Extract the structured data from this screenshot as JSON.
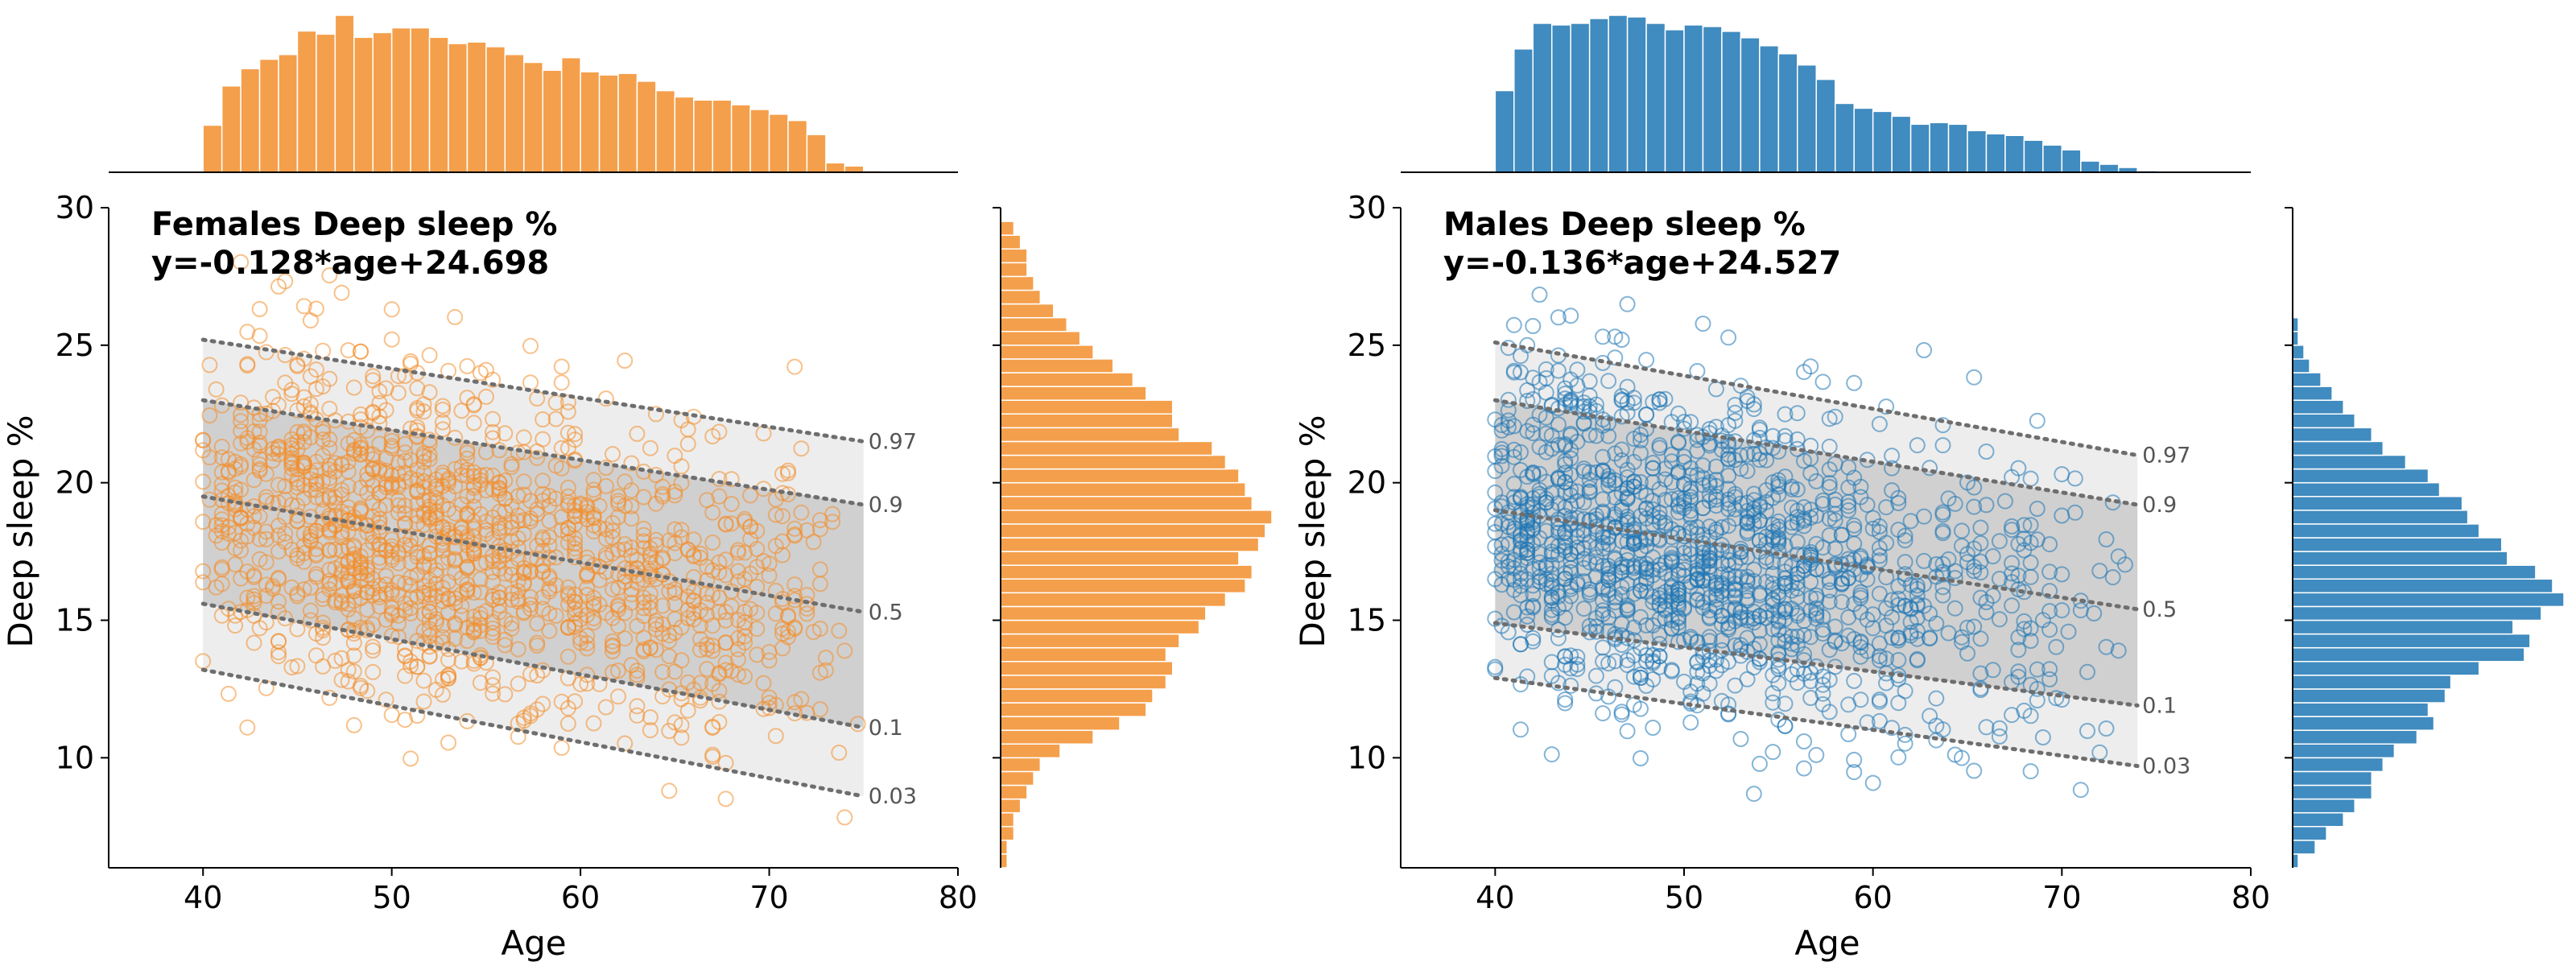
{
  "chart_data": [
    {
      "type": "scatter",
      "title": "Females Deep sleep %",
      "equation": "y=-0.128*age+24.698",
      "xlabel": "Age",
      "ylabel": "Deep sleep %",
      "xlim": [
        35,
        80
      ],
      "ylim": [
        6,
        30
      ],
      "xticks": [
        "40",
        "50",
        "60",
        "70",
        "80"
      ],
      "yticks": [
        "10",
        "15",
        "20",
        "25",
        "30"
      ],
      "color": "#f28e2b",
      "regression": {
        "slope": -0.128,
        "intercept": 24.698
      },
      "quantiles": [
        {
          "label": "0.97",
          "y_at_40": 25.2,
          "y_at_75": 21.5
        },
        {
          "label": "0.9",
          "y_at_40": 23.0,
          "y_at_75": 19.2
        },
        {
          "label": "0.5",
          "y_at_40": 19.5,
          "y_at_75": 15.3
        },
        {
          "label": "0.1",
          "y_at_40": 15.6,
          "y_at_75": 11.1
        },
        {
          "label": "0.03",
          "y_at_40": 13.2,
          "y_at_75": 8.6
        }
      ],
      "age_histogram": {
        "bin_start": 40,
        "bin_width": 1,
        "counts": [
          30,
          55,
          66,
          72,
          75,
          90,
          88,
          100,
          86,
          89,
          92,
          92,
          86,
          82,
          83,
          80,
          75,
          70,
          65,
          73,
          64,
          62,
          63,
          58,
          52,
          48,
          46,
          46,
          43,
          40,
          37,
          33,
          24,
          6,
          4,
          1
        ]
      },
      "value_histogram": {
        "bin_start": 6,
        "bin_width": 0.5,
        "counts": [
          1,
          1,
          2,
          2,
          3,
          4,
          5,
          6,
          9,
          14,
          18,
          22,
          23,
          25,
          26,
          25,
          27,
          30,
          31,
          34,
          37,
          38,
          36,
          39,
          40,
          41,
          38,
          37,
          36,
          34,
          32,
          27,
          26,
          26,
          22,
          20,
          17,
          14,
          12,
          10,
          8,
          6,
          5,
          4,
          4,
          3,
          2
        ]
      },
      "n_points": 1400,
      "seed": 11
    },
    {
      "type": "scatter",
      "title": "Males Deep sleep %",
      "equation": "y=-0.136*age+24.527",
      "xlabel": "Age",
      "ylabel": "Deep sleep %",
      "xlim": [
        35,
        80
      ],
      "ylim": [
        6,
        30
      ],
      "xticks": [
        "40",
        "50",
        "60",
        "70",
        "80"
      ],
      "yticks": [
        "10",
        "15",
        "20",
        "25",
        "30"
      ],
      "color": "#1f77b4",
      "regression": {
        "slope": -0.136,
        "intercept": 24.527
      },
      "quantiles": [
        {
          "label": "0.97",
          "y_at_40": 25.1,
          "y_at_74": 21.0
        },
        {
          "label": "0.9",
          "y_at_40": 23.0,
          "y_at_74": 19.2
        },
        {
          "label": "0.5",
          "y_at_40": 19.0,
          "y_at_74": 15.4
        },
        {
          "label": "0.1",
          "y_at_40": 14.9,
          "y_at_74": 11.9
        },
        {
          "label": "0.03",
          "y_at_40": 12.9,
          "y_at_74": 9.7
        }
      ],
      "age_histogram": {
        "bin_start": 40,
        "bin_width": 1,
        "counts": [
          51,
          77,
          93,
          92,
          93,
          96,
          98,
          97,
          93,
          89,
          92,
          91,
          88,
          84,
          79,
          74,
          67,
          58,
          43,
          40,
          38,
          35,
          30,
          31,
          30,
          26,
          24,
          23,
          20,
          17,
          14,
          7,
          5,
          3,
          1
        ]
      },
      "value_histogram": {
        "bin_start": 6,
        "bin_width": 0.5,
        "counts": [
          1,
          4,
          6,
          9,
          11,
          14,
          14,
          16,
          18,
          22,
          25,
          24,
          27,
          28,
          33,
          41,
          42,
          39,
          44,
          48,
          46,
          43,
          38,
          37,
          33,
          31,
          30,
          26,
          24,
          20,
          16,
          14,
          11,
          9,
          7,
          5,
          3,
          2,
          1,
          1
        ]
      },
      "n_points": 1400,
      "seed": 23
    }
  ]
}
